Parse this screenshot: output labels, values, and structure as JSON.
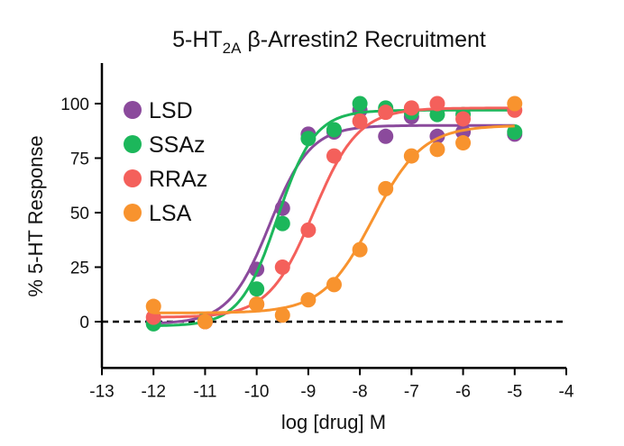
{
  "chart_data": {
    "type": "scatter",
    "title": "5-HT",
    "title_sub": "2A",
    "title_rest": " β-Arrestin2 Recruitment",
    "xlabel": "log [drug] M",
    "ylabel": "% 5-HT Response",
    "xlim": [
      -13,
      -4
    ],
    "ylim": [
      -20,
      120
    ],
    "xticks": [
      -13,
      -12,
      -11,
      -10,
      -9,
      -8,
      -7,
      -6,
      -5,
      -4
    ],
    "yticks": [
      0,
      25,
      50,
      75,
      100
    ],
    "reference_line": 0,
    "legend_position": "top-left",
    "x": [
      -12,
      -11,
      -10,
      -9.5,
      -9,
      -8.5,
      -8,
      -7.5,
      -7,
      -6.5,
      -6,
      -5
    ],
    "series": [
      {
        "name": "LSD",
        "color": "#8b4a9c",
        "values": [
          0,
          0,
          24,
          52,
          86,
          87,
          97,
          85,
          94,
          85,
          87,
          86
        ],
        "fit": {
          "bottom": -1,
          "top": 90,
          "logEC50": -9.75,
          "hill": 1.1
        }
      },
      {
        "name": "SSAz",
        "color": "#1cb75b",
        "values": [
          -1,
          1,
          15,
          45,
          84,
          88,
          100,
          98,
          96,
          95,
          95,
          87
        ],
        "fit": {
          "bottom": -2,
          "top": 97,
          "logEC50": -9.6,
          "hill": 1.2
        }
      },
      {
        "name": "RRAz",
        "color": "#f4605b",
        "values": [
          2,
          0,
          8,
          25,
          42,
          76,
          92,
          96,
          98,
          100,
          93,
          97
        ],
        "fit": {
          "bottom": 2,
          "top": 98,
          "logEC50": -8.9,
          "hill": 1.0
        }
      },
      {
        "name": "LSA",
        "color": "#f8932e",
        "values": [
          7,
          0,
          8,
          3,
          10,
          17,
          33,
          61,
          76,
          79,
          82,
          100
        ],
        "fit": {
          "bottom": 4,
          "top": 90,
          "logEC50": -7.75,
          "hill": 0.9
        }
      }
    ]
  }
}
